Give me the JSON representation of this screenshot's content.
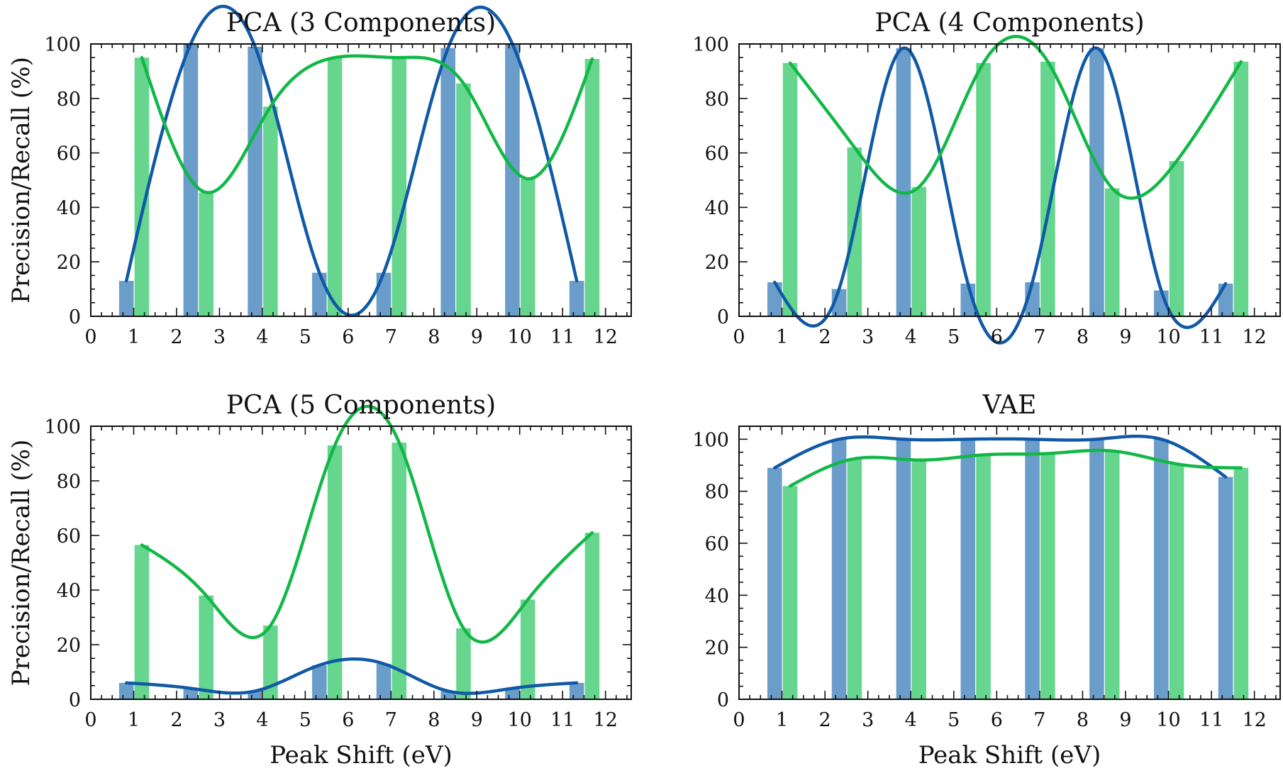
{
  "colors": {
    "precision": "#1059a6",
    "recall": "#11b847",
    "precision_bar": "#6b9dca",
    "recall_bar": "#66d58e"
  },
  "chart_data": [
    {
      "type": "bar",
      "title": "PCA (3 Components)",
      "xlabel": "",
      "ylabel": "Precision/Recall (%)",
      "xlim": [
        0,
        12.6
      ],
      "ylim": [
        0,
        100
      ],
      "xticks": [
        "0",
        "1",
        "2",
        "3",
        "4",
        "5",
        "6",
        "7",
        "8",
        "9",
        "10",
        "11",
        "12"
      ],
      "yticks": [
        "0",
        "20",
        "40",
        "60",
        "80",
        "100"
      ],
      "x": [
        0.83,
        2.33,
        3.83,
        5.33,
        6.83,
        8.33,
        9.83,
        11.33
      ],
      "series": [
        {
          "values": [
            13,
            100,
            99,
            16,
            16,
            98.5,
            100,
            13
          ]
        },
        {
          "values": [
            95,
            45.5,
            77,
            95,
            95,
            85.5,
            50.5,
            94.5
          ]
        }
      ]
    },
    {
      "type": "bar",
      "title": "PCA (4 Components)",
      "xlabel": "",
      "ylabel": "",
      "xlim": [
        0,
        12.6
      ],
      "ylim": [
        0,
        100
      ],
      "xticks": [
        "0",
        "1",
        "2",
        "3",
        "4",
        "5",
        "6",
        "7",
        "8",
        "9",
        "10",
        "11",
        "12"
      ],
      "yticks": [
        "0",
        "20",
        "40",
        "60",
        "80",
        "100"
      ],
      "x": [
        0.83,
        2.33,
        3.83,
        5.33,
        6.83,
        8.33,
        9.83,
        11.33
      ],
      "series": [
        {
          "values": [
            12.5,
            10,
            98.5,
            12,
            12.5,
            98.5,
            9.5,
            12
          ]
        },
        {
          "values": [
            93,
            62,
            47.5,
            93,
            93.5,
            47,
            57,
            93.5
          ]
        }
      ]
    },
    {
      "type": "bar",
      "title": "PCA (5 Components)",
      "xlabel": "Peak Shift (eV)",
      "ylabel": "Precision/Recall (%)",
      "xlim": [
        0,
        12.6
      ],
      "ylim": [
        0,
        100
      ],
      "xticks": [
        "0",
        "1",
        "2",
        "3",
        "4",
        "5",
        "6",
        "7",
        "8",
        "9",
        "10",
        "11",
        "12"
      ],
      "yticks": [
        "0",
        "20",
        "40",
        "60",
        "80",
        "100"
      ],
      "x": [
        0.83,
        2.33,
        3.83,
        5.33,
        6.83,
        8.33,
        9.83,
        11.33
      ],
      "series": [
        {
          "values": [
            6,
            4,
            3,
            12.5,
            13,
            3,
            4,
            6
          ]
        },
        {
          "values": [
            56.5,
            38,
            27,
            93,
            94,
            26,
            36.5,
            61
          ]
        }
      ]
    },
    {
      "type": "bar",
      "title": "VAE",
      "xlabel": "Peak Shift (eV)",
      "ylabel": "",
      "xlim": [
        0,
        12.6
      ],
      "ylim": [
        0,
        105
      ],
      "xticks": [
        "0",
        "1",
        "2",
        "3",
        "4",
        "5",
        "6",
        "7",
        "8",
        "9",
        "10",
        "11",
        "12"
      ],
      "yticks": [
        "0",
        "20",
        "40",
        "60",
        "80",
        "100"
      ],
      "x": [
        0.83,
        2.33,
        3.83,
        5.33,
        6.83,
        8.33,
        9.83,
        11.33
      ],
      "series": [
        {
          "values": [
            89,
            100,
            100,
            100,
            100,
            100,
            100,
            85.5
          ]
        },
        {
          "values": [
            82,
            92.5,
            92,
            94,
            94.5,
            95.5,
            90.5,
            89
          ]
        }
      ]
    }
  ]
}
